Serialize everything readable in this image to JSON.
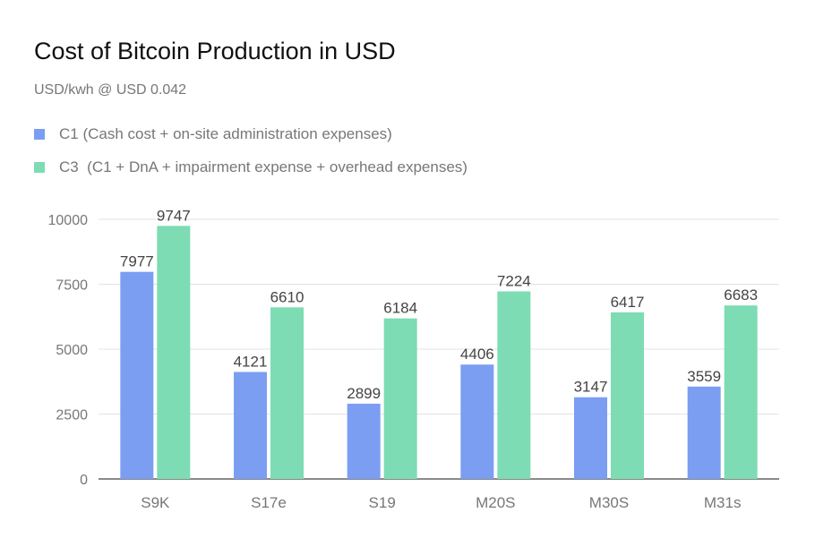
{
  "chart_data": {
    "type": "bar",
    "title": "Cost of Bitcoin Production in USD",
    "subtitle": "USD/kwh @ USD 0.042",
    "xlabel": "",
    "ylabel": "",
    "categories": [
      "S9K",
      "S17e",
      "S19",
      "M20S",
      "M30S",
      "M31s"
    ],
    "series": [
      {
        "name": "C1 (Cash cost + on-site administration expenses)",
        "color": "#7b9ef2",
        "values": [
          7977,
          4121,
          2899,
          4406,
          3147,
          3559
        ]
      },
      {
        "name": "C3  (C1 + DnA + impairment expense + overhead expenses)",
        "color": "#7ddcb3",
        "values": [
          9747,
          6610,
          6184,
          7224,
          6417,
          6683
        ]
      }
    ],
    "ylim": [
      0,
      10000
    ],
    "yticks": [
      "0",
      "2500",
      "5000",
      "7500",
      "10000"
    ],
    "grid": true,
    "legend_position": "top-left"
  }
}
